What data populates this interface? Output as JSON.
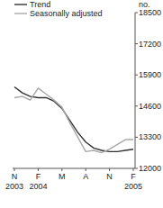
{
  "chart_data": {
    "type": "line",
    "y_label": "no.",
    "categories": [
      "N 2003",
      null,
      null,
      "F 2004",
      null,
      null,
      "M",
      null,
      null,
      "A",
      null,
      null,
      "N",
      null,
      null,
      "F 2005"
    ],
    "series": [
      {
        "name": "Trend",
        "color": "#333333",
        "values": [
          15400,
          15150,
          15000,
          14950,
          14950,
          14800,
          14500,
          14000,
          13500,
          13100,
          12850,
          12750,
          12700,
          12700,
          12750,
          12800
        ]
      },
      {
        "name": "Seasonally adjusted",
        "color": "#a8a8a8",
        "values": [
          14950,
          15000,
          14850,
          15350,
          15100,
          14850,
          14550,
          13900,
          13300,
          12700,
          12750,
          12650,
          12800,
          13000,
          13200,
          13200
        ]
      }
    ],
    "ylim": [
      12000,
      18500
    ],
    "yticks": [
      12000,
      13300,
      14600,
      15900,
      17200,
      18500
    ],
    "grid": false,
    "legend": "top-left"
  }
}
